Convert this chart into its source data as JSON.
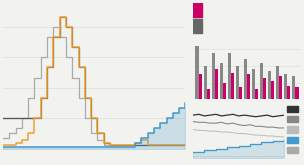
{
  "bg_color": "#f2f2ee",
  "left_panel": {
    "orange_y": [
      0.3,
      0.3,
      0.5,
      0.8,
      1.5,
      3,
      5,
      8,
      11,
      13,
      12,
      10,
      8,
      5,
      3,
      1.5,
      0.5,
      0.3,
      0.3,
      0.3,
      0.3,
      0.5,
      0.8,
      0.3,
      0.3,
      0.3,
      0.3,
      0.3,
      0.3,
      0.3
    ],
    "dark_gray_y": [
      3,
      3,
      3,
      3,
      3,
      3,
      5,
      8,
      11,
      13,
      12,
      10,
      8,
      5,
      3,
      1.5,
      0.5,
      0.3,
      0.3,
      0.3,
      0.3,
      0.3,
      0.3,
      0.3,
      0.3,
      0.3,
      0.3,
      0.3,
      0.3,
      0.3
    ],
    "light_gray_y": [
      1,
      1.5,
      2,
      3,
      5,
      7,
      9,
      11,
      12,
      11,
      9,
      7,
      5,
      3,
      1.5,
      0.8,
      0.3,
      0.3,
      0.3,
      0.3,
      0.3,
      0.3,
      0.3,
      0.3,
      0.3,
      0.3,
      0.3,
      0.3,
      0.3,
      0.3
    ],
    "blue_y": [
      0.15,
      0.15,
      0.15,
      0.15,
      0.15,
      0.15,
      0.15,
      0.15,
      0.15,
      0.15,
      0.15,
      0.15,
      0.15,
      0.15,
      0.15,
      0.15,
      0.15,
      0.15,
      0.15,
      0.15,
      0.15,
      0.5,
      1.0,
      1.5,
      2.0,
      2.5,
      3.0,
      3.5,
      4.0,
      4.5
    ],
    "ylim": [
      0,
      14
    ],
    "orange_color": "#f0a030",
    "dark_gray_color": "#555555",
    "light_gray_color": "#aaaaaa",
    "blue_color": "#4499cc",
    "hline_y": [
      3,
      6,
      9,
      12
    ],
    "hline_color": "#dddddd",
    "ref_hline_y": 3,
    "ref_hline_color": "#888888"
  },
  "right_top": {
    "legend_magenta": "#cc0066",
    "legend_gray": "#666666",
    "bar_magenta": [
      1.5,
      0.6,
      1.8,
      1.0,
      1.6,
      0.7,
      1.5,
      0.6,
      1.3,
      1.1,
      1.4,
      0.8,
      0.7
    ],
    "bar_gray": [
      3.2,
      2.0,
      2.8,
      2.2,
      2.8,
      2.0,
      2.4,
      1.8,
      2.2,
      1.7,
      2.0,
      1.5,
      1.4
    ],
    "bar_magenta_color": "#cc0066",
    "bar_gray_color": "#888888",
    "bar_light_color": "#ddaacc"
  },
  "right_bottom": {
    "black_y": [
      5.4,
      5.5,
      5.3,
      5.4,
      5.5,
      5.3,
      5.4,
      5.5,
      5.3,
      5.4,
      5.3,
      5.2,
      5.3,
      5.4,
      5.2,
      5.3,
      5.4
    ],
    "mgray_y": [
      4.6,
      4.5,
      4.5,
      4.4,
      4.4,
      4.5,
      4.3,
      4.4,
      4.2,
      4.1,
      4.2,
      4.0,
      4.0,
      3.9,
      3.9,
      3.8,
      3.8
    ],
    "lgray_y": [
      3.6,
      3.5,
      3.5,
      3.4,
      3.4,
      3.3,
      3.3,
      3.2,
      3.1,
      3.1,
      3.0,
      2.9,
      2.9,
      2.8,
      2.8,
      2.7,
      2.7
    ],
    "blue_y": [
      0.8,
      0.8,
      1.0,
      1.0,
      1.2,
      1.2,
      1.4,
      1.4,
      1.6,
      1.6,
      1.8,
      1.8,
      2.0,
      2.0,
      2.2,
      2.2,
      2.4
    ],
    "dotted_y": [
      0.3,
      0.3,
      0.3,
      0.3,
      0.3,
      0.3,
      0.3,
      0.3,
      0.3,
      0.3,
      0.3,
      0.3,
      0.3,
      0.3,
      0.3,
      0.3,
      0.3
    ],
    "black_color": "#333333",
    "mgray_color": "#888888",
    "lgray_color": "#bbbbbb",
    "blue_color": "#4499cc",
    "dot_color": "#aaaaaa",
    "sq_colors": [
      "#333333",
      "#888888",
      "#bbbbbb",
      "#4499cc",
      "#aaaaaa"
    ]
  }
}
